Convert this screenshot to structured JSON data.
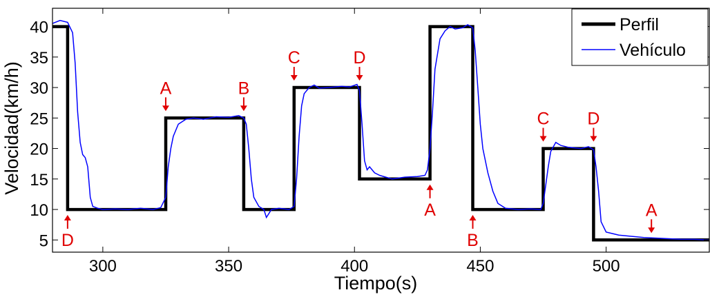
{
  "chart_data": {
    "type": "line",
    "title": "",
    "xlabel": "Tiempo(s)",
    "ylabel": "Velocidad(km/h)",
    "xlim": [
      280,
      541
    ],
    "ylim": [
      3,
      43
    ],
    "xticks": [
      300,
      350,
      400,
      450,
      500
    ],
    "yticks": [
      5,
      10,
      15,
      20,
      25,
      30,
      35,
      40
    ],
    "grid": false,
    "legend": {
      "placement": "top-right",
      "entries": [
        "Perfil",
        "Vehículo"
      ]
    },
    "colors": {
      "perfil": "#000000",
      "vehiculo": "#0000ff",
      "annotation": "#e00000"
    },
    "series": [
      {
        "name": "Perfil",
        "x": [
          280,
          286,
          286,
          325,
          325,
          356,
          356,
          376,
          376,
          402,
          402,
          430,
          430,
          447,
          447,
          475,
          475,
          495,
          495,
          541
        ],
        "y": [
          40,
          40,
          10,
          10,
          25,
          25,
          10,
          10,
          30,
          30,
          15,
          15,
          40,
          40,
          10,
          10,
          20,
          20,
          5,
          5
        ]
      },
      {
        "name": "Vehículo",
        "x": [
          280,
          283,
          286,
          288,
          289,
          290,
          291,
          292,
          293,
          294,
          295,
          296,
          298,
          300,
          305,
          310,
          315,
          320,
          323,
          325,
          326,
          327,
          328,
          330,
          333,
          336,
          340,
          345,
          350,
          354,
          356,
          357,
          358,
          359,
          360,
          362,
          364,
          365,
          367,
          370,
          374,
          376,
          377,
          378,
          379,
          380,
          382,
          384,
          386,
          390,
          395,
          398,
          401,
          402,
          403,
          404,
          405,
          406,
          408,
          410,
          415,
          420,
          425,
          428,
          429,
          430,
          431,
          432,
          434,
          436,
          438,
          440,
          443,
          445,
          447,
          448,
          449,
          450,
          451,
          453,
          455,
          457,
          460,
          465,
          470,
          474,
          475,
          476,
          477,
          478,
          480,
          482,
          485,
          490,
          493,
          495,
          496,
          497,
          498,
          500,
          505,
          510,
          515,
          520,
          525,
          530,
          535,
          541
        ],
        "y": [
          40.5,
          41,
          40.7,
          39,
          34,
          26,
          21,
          19,
          18.5,
          17,
          12,
          10.5,
          10.2,
          10,
          10.1,
          10,
          10.2,
          10,
          10.3,
          12,
          17,
          20,
          22,
          24,
          24.8,
          25,
          24.8,
          25.2,
          25.1,
          25.4,
          25,
          24,
          20,
          15,
          12,
          10.5,
          10,
          8.7,
          10,
          10.2,
          10,
          10.5,
          15,
          22,
          27,
          29,
          30,
          30.4,
          29.9,
          30,
          30.2,
          30.1,
          30.5,
          29.5,
          24,
          18,
          16.5,
          17,
          16,
          15.6,
          15,
          15.3,
          15.4,
          15.6,
          16.5,
          20,
          26,
          33,
          38,
          39.3,
          40,
          39.6,
          39.8,
          40.3,
          39.8,
          36,
          30,
          24,
          20,
          16,
          13,
          11,
          10.2,
          10,
          10.1,
          10,
          11,
          14,
          17,
          19.5,
          21,
          20.5,
          20.2,
          20,
          20.3,
          19.8,
          17,
          13,
          8,
          6.3,
          5.8,
          5.6,
          5.4,
          5.3,
          5.2,
          5.1,
          5.1,
          5
        ]
      }
    ],
    "annotations": [
      {
        "label": "D",
        "x": 286,
        "y": 10,
        "side": "below"
      },
      {
        "label": "A",
        "x": 325,
        "y": 25,
        "side": "above"
      },
      {
        "label": "B",
        "x": 356,
        "y": 25,
        "side": "above"
      },
      {
        "label": "C",
        "x": 376,
        "y": 30,
        "side": "above"
      },
      {
        "label": "D",
        "x": 402,
        "y": 30,
        "side": "above"
      },
      {
        "label": "A",
        "x": 430,
        "y": 15,
        "side": "below"
      },
      {
        "label": "B",
        "x": 447,
        "y": 10,
        "side": "below"
      },
      {
        "label": "C",
        "x": 475,
        "y": 20,
        "side": "above"
      },
      {
        "label": "D",
        "x": 495,
        "y": 20,
        "side": "above"
      },
      {
        "label": "A",
        "x": 518,
        "y": 5,
        "side": "above"
      }
    ]
  }
}
